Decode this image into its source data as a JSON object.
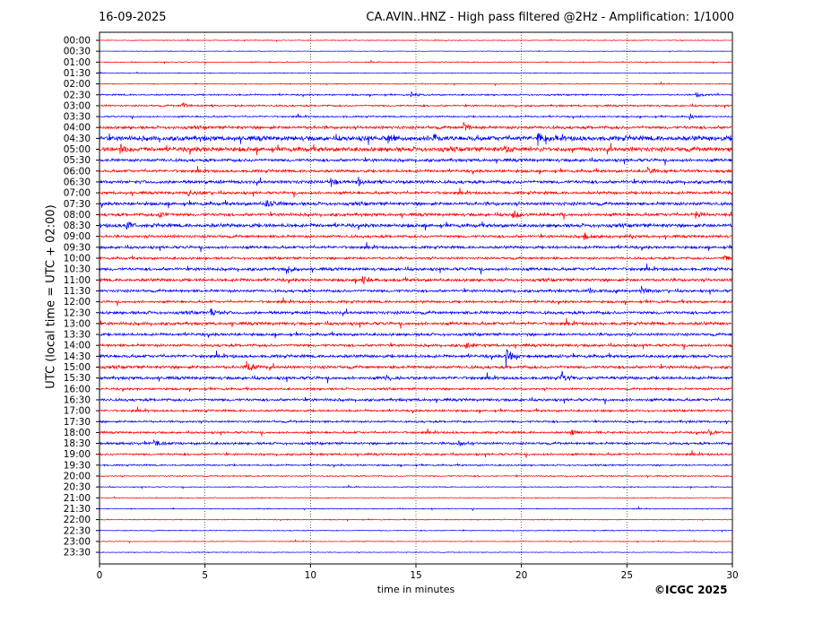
{
  "header": {
    "date": "16-09-2025",
    "title": "CA.AVIN..HNZ - High pass filtered @2Hz - Amplification: 1/1000"
  },
  "footer": {
    "copyright": "©ICGC 2025"
  },
  "chart_data": {
    "type": "line",
    "title": "CA.AVIN..HNZ - High pass filtered @2Hz - Amplification: 1/1000",
    "xlabel": "time in minutes",
    "ylabel": "UTC (local time = UTC + 02:00)",
    "xlim": [
      0,
      30
    ],
    "xticks": [
      "0",
      "5",
      "10",
      "15",
      "20",
      "25",
      "30"
    ],
    "grid": "vertical dotted lines every 5 minutes",
    "row_labels": [
      "00:00",
      "00:30",
      "01:00",
      "01:30",
      "02:00",
      "02:30",
      "03:00",
      "03:30",
      "04:00",
      "04:30",
      "05:00",
      "05:30",
      "06:00",
      "06:30",
      "07:00",
      "07:30",
      "08:00",
      "08:30",
      "09:00",
      "09:30",
      "10:00",
      "10:30",
      "11:00",
      "11:30",
      "12:00",
      "12:30",
      "13:00",
      "13:30",
      "14:00",
      "14:30",
      "15:00",
      "15:30",
      "16:00",
      "16:30",
      "17:00",
      "17:30",
      "18:00",
      "18:30",
      "19:00",
      "19:30",
      "20:00",
      "20:30",
      "21:00",
      "21:30",
      "22:00",
      "22:30",
      "23:00",
      "23:30"
    ],
    "trace_colors": [
      "#ff0000",
      "#0000ff"
    ],
    "noise_levels": [
      0.5,
      0.4,
      0.6,
      0.5,
      0.6,
      1.0,
      1.2,
      1.0,
      2.0,
      3.2,
      3.0,
      2.0,
      1.8,
      2.2,
      1.8,
      2.2,
      2.0,
      2.4,
      1.8,
      1.8,
      1.6,
      2.0,
      2.0,
      1.8,
      1.6,
      2.0,
      2.0,
      1.8,
      1.8,
      2.0,
      2.0,
      2.0,
      1.4,
      1.8,
      1.4,
      1.4,
      1.4,
      1.6,
      1.4,
      1.0,
      0.8,
      0.6,
      0.6,
      0.6,
      0.6,
      0.6,
      0.5,
      0.5
    ],
    "events": [
      {
        "row": "02:30",
        "minute": 14.8,
        "amplitude": 3
      },
      {
        "row": "02:30",
        "minute": 28.3,
        "amplitude": 4
      },
      {
        "row": "03:00",
        "minute": 3.9,
        "amplitude": 4
      },
      {
        "row": "03:30",
        "minute": 28.0,
        "amplitude": 4
      },
      {
        "row": "04:00",
        "minute": 17.3,
        "amplitude": 5
      },
      {
        "row": "04:30",
        "minute": 13.7,
        "amplitude": 5
      },
      {
        "row": "04:30",
        "minute": 15.8,
        "amplitude": 6
      },
      {
        "row": "04:30",
        "minute": 20.8,
        "amplitude": 9
      },
      {
        "row": "05:00",
        "minute": 1.0,
        "amplitude": 5
      },
      {
        "row": "05:00",
        "minute": 19.2,
        "amplitude": 5
      },
      {
        "row": "06:00",
        "minute": 26.0,
        "amplitude": 4
      },
      {
        "row": "06:30",
        "minute": 11.0,
        "amplitude": 5
      },
      {
        "row": "06:30",
        "minute": 12.3,
        "amplitude": 5
      },
      {
        "row": "07:00",
        "minute": 4.2,
        "amplitude": 5
      },
      {
        "row": "07:30",
        "minute": 7.9,
        "amplitude": 6
      },
      {
        "row": "08:00",
        "minute": 2.8,
        "amplitude": 4
      },
      {
        "row": "08:00",
        "minute": 19.6,
        "amplitude": 7
      },
      {
        "row": "08:00",
        "minute": 28.3,
        "amplitude": 4
      },
      {
        "row": "08:30",
        "minute": 1.3,
        "amplitude": 6
      },
      {
        "row": "09:00",
        "minute": 23.0,
        "amplitude": 4
      },
      {
        "row": "10:00",
        "minute": 29.6,
        "amplitude": 5
      },
      {
        "row": "10:30",
        "minute": 8.9,
        "amplitude": 5
      },
      {
        "row": "11:00",
        "minute": 12.5,
        "amplitude": 5
      },
      {
        "row": "11:30",
        "minute": 23.1,
        "amplitude": 5
      },
      {
        "row": "11:30",
        "minute": 25.7,
        "amplitude": 5
      },
      {
        "row": "12:30",
        "minute": 5.3,
        "amplitude": 4
      },
      {
        "row": "14:00",
        "minute": 17.4,
        "amplitude": 4
      },
      {
        "row": "14:30",
        "minute": 19.3,
        "amplitude": 14
      },
      {
        "row": "15:00",
        "minute": 7.0,
        "amplitude": 12
      },
      {
        "row": "15:30",
        "minute": 21.9,
        "amplitude": 9
      },
      {
        "row": "15:30",
        "minute": 13.6,
        "amplitude": 4
      },
      {
        "row": "18:00",
        "minute": 22.4,
        "amplitude": 4
      },
      {
        "row": "18:00",
        "minute": 28.9,
        "amplitude": 4
      },
      {
        "row": "18:30",
        "minute": 2.6,
        "amplitude": 4
      },
      {
        "row": "18:30",
        "minute": 17.0,
        "amplitude": 3
      }
    ]
  }
}
